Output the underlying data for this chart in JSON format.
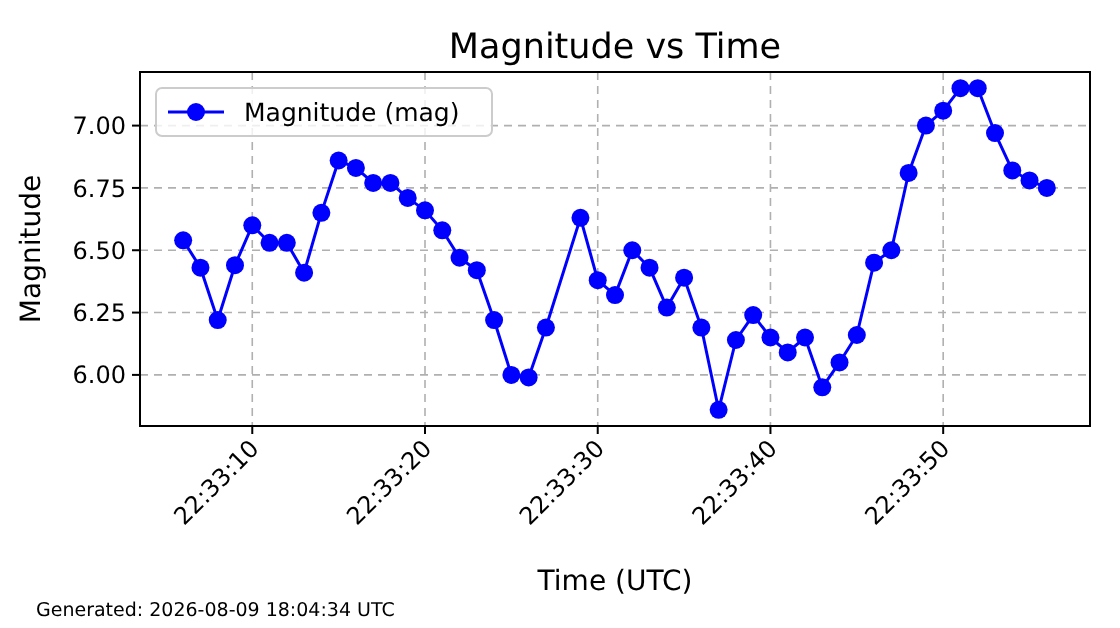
{
  "chart_data": {
    "type": "line",
    "title": "Magnitude vs Time",
    "xlabel": "Time (UTC)",
    "ylabel": "Magnitude",
    "annotations": [
      "Generated: 2026-08-09 18:04:34 UTC"
    ],
    "x": [
      "2026-08-09T22:33:06",
      "2026-08-09T22:33:07",
      "2026-08-09T22:33:08",
      "2026-08-09T22:33:09",
      "2026-08-09T22:33:10",
      "2026-08-09T22:33:11",
      "2026-08-09T22:33:12",
      "2026-08-09T22:33:13",
      "2026-08-09T22:33:14",
      "2026-08-09T22:33:15",
      "2026-08-09T22:33:16",
      "2026-08-09T22:33:17",
      "2026-08-09T22:33:18",
      "2026-08-09T22:33:19",
      "2026-08-09T22:33:20",
      "2026-08-09T22:33:21",
      "2026-08-09T22:33:22",
      "2026-08-09T22:33:23",
      "2026-08-09T22:33:24",
      "2026-08-09T22:33:25",
      "2026-08-09T22:33:26",
      "2026-08-09T22:33:27",
      "2026-08-09T22:33:29",
      "2026-08-09T22:33:30",
      "2026-08-09T22:33:31",
      "2026-08-09T22:33:32",
      "2026-08-09T22:33:33",
      "2026-08-09T22:33:34",
      "2026-08-09T22:33:35",
      "2026-08-09T22:33:36",
      "2026-08-09T22:33:37",
      "2026-08-09T22:33:38",
      "2026-08-09T22:33:39",
      "2026-08-09T22:33:40",
      "2026-08-09T22:33:41",
      "2026-08-09T22:33:42",
      "2026-08-09T22:33:43",
      "2026-08-09T22:33:44",
      "2026-08-09T22:33:45",
      "2026-08-09T22:33:46",
      "2026-08-09T22:33:47",
      "2026-08-09T22:33:48",
      "2026-08-09T22:33:49",
      "2026-08-09T22:33:50",
      "2026-08-09T22:33:51",
      "2026-08-09T22:33:52",
      "2026-08-09T22:33:53",
      "2026-08-09T22:33:54",
      "2026-08-09T22:33:55",
      "2026-08-09T22:33:56"
    ],
    "series": [
      {
        "name": "Magnitude (mag)",
        "color": "#0000ff",
        "values": [
          6.54,
          6.43,
          6.22,
          6.44,
          6.6,
          6.53,
          6.53,
          6.41,
          6.65,
          6.86,
          6.83,
          6.77,
          6.77,
          6.71,
          6.66,
          6.58,
          6.47,
          6.42,
          6.22,
          6.0,
          5.99,
          6.19,
          6.63,
          6.38,
          6.32,
          6.5,
          6.43,
          6.27,
          6.39,
          6.19,
          5.86,
          6.14,
          6.24,
          6.15,
          6.09,
          6.15,
          5.95,
          6.05,
          6.16,
          6.45,
          6.5,
          6.81,
          7.0,
          7.06,
          7.15,
          7.15,
          6.97,
          6.82,
          6.78,
          6.75
        ]
      }
    ],
    "xlim": [
      "2026-08-09T22:33:03.5",
      "2026-08-09T22:33:58.5"
    ],
    "xticks": [
      {
        "value": "2026-08-09T22:33:10",
        "label": "22:33:10"
      },
      {
        "value": "2026-08-09T22:33:20",
        "label": "22:33:20"
      },
      {
        "value": "2026-08-09T22:33:30",
        "label": "22:33:30"
      },
      {
        "value": "2026-08-09T22:33:40",
        "label": "22:33:40"
      },
      {
        "value": "2026-08-09T22:33:50",
        "label": "22:33:50"
      }
    ],
    "ylim": [
      5.795,
      7.215
    ],
    "yticks": [
      {
        "value": 6,
        "label": "6.00"
      },
      {
        "value": 6.25,
        "label": "6.25"
      },
      {
        "value": 6.5,
        "label": "6.50"
      },
      {
        "value": 6.75,
        "label": "6.75"
      },
      {
        "value": 7,
        "label": "7.00"
      }
    ],
    "grid": true,
    "legend": "top left",
    "marker": "circle",
    "line_style": "solid"
  }
}
